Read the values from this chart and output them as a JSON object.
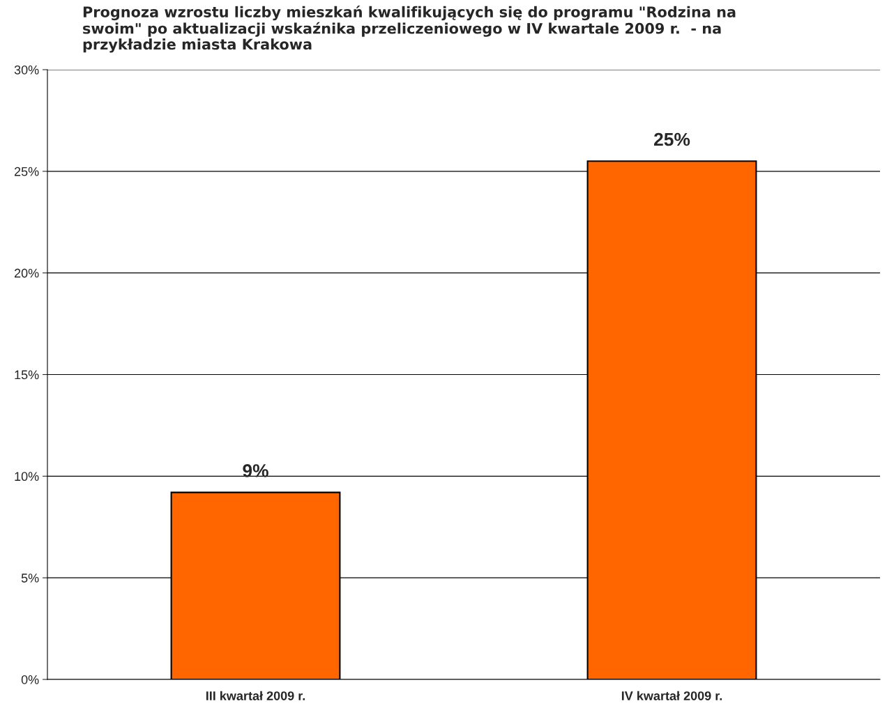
{
  "chart_data": {
    "type": "bar",
    "title": "Prognoza wzrostu liczby mieszkań kwalifikujących się do programu \"Rodzina na\nswoim\" po aktualizacji wskaźnika przeliczeniowego w IV kwartale 2009 r.  - na\nprzykładzie miasta Krakowa",
    "categories": [
      "III kwartał 2009 r.",
      "IV kwartał 2009 r."
    ],
    "values": [
      9.2,
      25.5
    ],
    "value_labels": [
      "9%",
      "25%"
    ],
    "color": "#ff6600",
    "ylim": [
      0,
      30
    ],
    "yticks": [
      {
        "value": 0,
        "label": "0%"
      },
      {
        "value": 5,
        "label": "5%"
      },
      {
        "value": 10,
        "label": "10%"
      },
      {
        "value": 15,
        "label": "15%"
      },
      {
        "value": 20,
        "label": "20%"
      },
      {
        "value": 25,
        "label": "25%"
      },
      {
        "value": 30,
        "label": "30%"
      }
    ],
    "grid": "y",
    "legend": false
  }
}
